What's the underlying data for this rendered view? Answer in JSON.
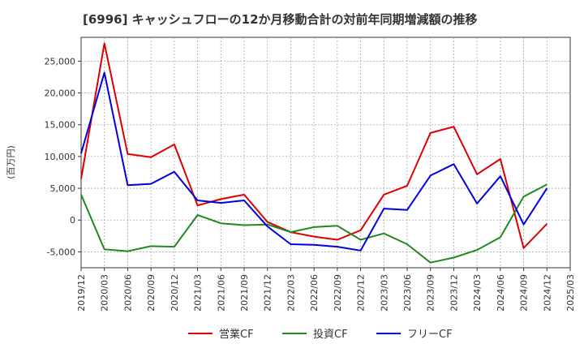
{
  "chart_data": {
    "type": "line",
    "title": "[6996]  キャッシュフローの12か月移動合計の対前年同期増減額の推移",
    "ylabel": "(百万円)",
    "xlabel": "",
    "ylim": [
      -7500,
      28750
    ],
    "y_ticks": [
      -5000,
      0,
      5000,
      10000,
      15000,
      20000,
      25000
    ],
    "y_tick_labels": [
      "-5,000",
      "0",
      "5,000",
      "10,000",
      "15,000",
      "20,000",
      "25,000"
    ],
    "categories": [
      "2019/12",
      "2020/03",
      "2020/06",
      "2020/09",
      "2020/12",
      "2021/03",
      "2021/06",
      "2021/09",
      "2021/12",
      "2022/03",
      "2022/06",
      "2022/09",
      "2022/12",
      "2023/03",
      "2023/06",
      "2023/09",
      "2023/12",
      "2024/03",
      "2024/06",
      "2024/09",
      "2024/12",
      "2025/03"
    ],
    "grid": true,
    "legend_position": "bottom",
    "series": [
      {
        "name": "営業CF",
        "color": "#dd0000",
        "values": [
          6500,
          27800,
          10400,
          9900,
          11900,
          2300,
          3300,
          4000,
          -300,
          -1900,
          -2600,
          -3100,
          -1600,
          4000,
          5400,
          13700,
          14700,
          7200,
          9600,
          -4400,
          -600,
          null
        ]
      },
      {
        "name": "投資CF",
        "color": "#228822",
        "values": [
          4000,
          -4600,
          -4900,
          -4100,
          -4200,
          800,
          -500,
          -800,
          -700,
          -1900,
          -1100,
          -900,
          -3100,
          -2100,
          -3800,
          -6700,
          -5900,
          -4700,
          -2700,
          3700,
          5600,
          null
        ]
      },
      {
        "name": "フリーCF",
        "color": "#0000dd",
        "values": [
          10500,
          23200,
          5500,
          5700,
          7600,
          3100,
          2700,
          3100,
          -1000,
          -3800,
          -3900,
          -4200,
          -4800,
          1800,
          1600,
          7000,
          8800,
          2600,
          6900,
          -700,
          5000,
          null
        ]
      }
    ]
  }
}
